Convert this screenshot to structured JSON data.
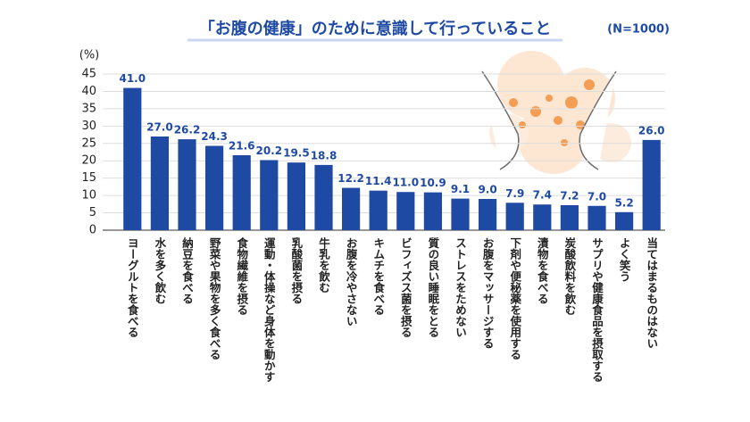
{
  "chart_data": {
    "type": "bar",
    "title": "「お腹の健康」のために意識して行っていること",
    "subtitle": "(N=1000)",
    "y_label": "(%)",
    "categories": [
      "ヨーグルトを食べる",
      "水を多く飲む",
      "納豆を食べる",
      "野菜や果物を多く食べる",
      "食物繊維を摂る",
      "運動・体操など身体を動かす",
      "乳酸菌を摂る",
      "牛乳を飲む",
      "お腹を冷やさない",
      "キムチを食べる",
      "ビフィズス菌を摂る",
      "質の良い睡眠をとる",
      "ストレスをためない",
      "お腹をマッサージする",
      "下剤や便秘薬を使用する",
      "漬物を食べる",
      "炭酸飲料を飲む",
      "サプリや健康食品を摂取する",
      "よく笑う",
      "当てはまるものはない"
    ],
    "values": [
      41.0,
      27.0,
      26.2,
      24.3,
      21.6,
      20.2,
      19.5,
      18.8,
      12.2,
      11.4,
      11.0,
      10.9,
      9.1,
      9.0,
      7.9,
      7.4,
      7.2,
      7.0,
      5.2,
      26.0
    ],
    "value_labels": [
      "41.0",
      "27.0",
      "26.2",
      "24.3",
      "21.6",
      "20.2",
      "19.5",
      "18.8",
      "12.2",
      "11.4",
      "11.0",
      "10.9",
      "9.1",
      "9.0",
      "7.9",
      "7.4",
      "7.2",
      "7.0",
      "5.2",
      "26.0"
    ],
    "color": "#1f4aa3",
    "ylim": [
      0,
      45
    ],
    "yticks": [
      0,
      5,
      10,
      15,
      20,
      25,
      30,
      35,
      40,
      45
    ],
    "grid": true
  }
}
